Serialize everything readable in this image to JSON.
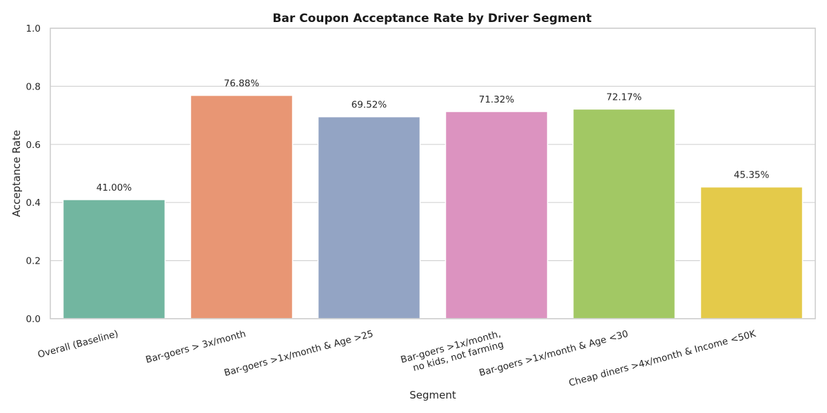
{
  "chart_data": {
    "type": "bar",
    "title": "Bar Coupon Acceptance Rate by Driver Segment",
    "xlabel": "Segment",
    "ylabel": "Acceptance Rate",
    "ylim": [
      0,
      1.0
    ],
    "yticks": [
      "0.0",
      "0.2",
      "0.4",
      "0.6",
      "0.8",
      "1.0"
    ],
    "grid": true,
    "categories": [
      [
        "Overall (Baseline)"
      ],
      [
        "Bar-goers > 3x/month"
      ],
      [
        "Bar-goers >1x/month & Age >25"
      ],
      [
        "Bar-goers >1x/month,",
        "no kids, not farming"
      ],
      [
        "Bar-goers >1x/month & Age <30"
      ],
      [
        "Cheap diners >4x/month & Income <50K"
      ]
    ],
    "values": [
      0.41,
      0.7688,
      0.6952,
      0.7132,
      0.7217,
      0.4535
    ],
    "value_labels": [
      "41.00%",
      "76.88%",
      "69.52%",
      "71.32%",
      "72.17%",
      "45.35%"
    ],
    "colors": [
      "#72b6a0",
      "#e89674",
      "#93a4c4",
      "#dc93c0",
      "#a2c864",
      "#e4ca4a"
    ]
  }
}
